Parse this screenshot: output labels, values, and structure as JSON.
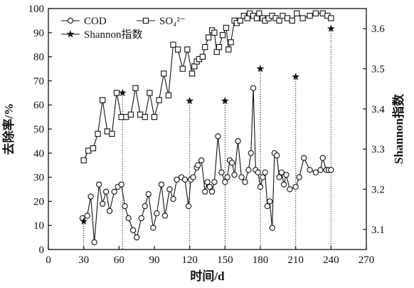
{
  "chart_data": {
    "type": "line",
    "xlabel": "时间/d",
    "ylabel": "去除率/%",
    "y2label": "Shannon指数",
    "xlim": [
      0,
      270
    ],
    "ylim": [
      0,
      100
    ],
    "y2lim": [
      3.05,
      3.65
    ],
    "xticks": [
      "0",
      "30",
      "60",
      "90",
      "120",
      "150",
      "180",
      "210",
      "240",
      "270"
    ],
    "yticks": [
      "0",
      "10",
      "20",
      "30",
      "40",
      "50",
      "60",
      "70",
      "80",
      "90",
      "100"
    ],
    "y2ticks": [
      "3.1",
      "3.2",
      "3.3",
      "3.4",
      "3.5",
      "3.6"
    ],
    "legend_position": "top-left",
    "series": [
      {
        "name": "COD",
        "axis": "left",
        "marker": "circle",
        "x": [
          29,
          33,
          36,
          39,
          43,
          46,
          49,
          52,
          56,
          59,
          62,
          65,
          68,
          72,
          75,
          79,
          82,
          85,
          89,
          92,
          96,
          99,
          103,
          106,
          109,
          113,
          116,
          119,
          121,
          123,
          126,
          127,
          130,
          133,
          135,
          137,
          139,
          141,
          144,
          147,
          150,
          152,
          154,
          156,
          158,
          161,
          164,
          167,
          170,
          172,
          174,
          176,
          178,
          180,
          182,
          184,
          186,
          188,
          190,
          192,
          194,
          196,
          198,
          200,
          202,
          205,
          210,
          213,
          217,
          222,
          227,
          231,
          233,
          236,
          238,
          240
        ],
        "y": [
          13,
          14,
          22,
          3,
          27,
          19,
          24,
          16,
          24,
          26,
          27,
          18,
          13,
          8,
          5,
          13,
          18,
          23,
          9,
          15,
          27,
          14,
          25,
          21,
          29,
          30,
          29,
          18,
          29,
          30,
          34,
          35,
          37,
          24,
          28,
          26,
          24,
          28,
          47,
          32,
          28,
          30,
          37,
          36,
          31,
          45,
          30,
          28,
          33,
          40,
          67,
          33,
          32,
          26,
          30,
          32,
          18,
          20,
          9,
          40,
          39,
          30,
          32,
          27,
          31,
          25,
          26,
          30,
          38,
          33,
          32,
          33,
          38,
          33,
          33,
          33
        ],
        "note": "values read off left axis (%)"
      },
      {
        "name": "SO₄²⁻",
        "axis": "left",
        "marker": "square",
        "x": [
          30,
          34,
          38,
          42,
          46,
          50,
          54,
          58,
          62,
          66,
          70,
          74,
          78,
          82,
          86,
          90,
          94,
          98,
          102,
          106,
          110,
          114,
          118,
          122,
          124,
          126,
          128,
          131,
          133,
          136,
          139,
          141,
          143,
          145,
          148,
          151,
          153,
          155,
          158,
          160,
          163,
          166,
          169,
          171,
          174,
          177,
          179,
          182,
          184,
          187,
          190,
          193,
          196,
          199,
          203,
          207,
          211,
          216,
          222,
          227,
          233,
          237,
          240
        ],
        "y": [
          37,
          41,
          42,
          48,
          62,
          49,
          48,
          65,
          55,
          55,
          56,
          67,
          56,
          55,
          65,
          55,
          62,
          73,
          64,
          85,
          83,
          75,
          83,
          73,
          76,
          78,
          79,
          80,
          84,
          88,
          91,
          90,
          82,
          84,
          89,
          92,
          83,
          86,
          95,
          94,
          95,
          97,
          96,
          98,
          97,
          96,
          98,
          96,
          95,
          96,
          97,
          96,
          95,
          97,
          96,
          95,
          98,
          96,
          97,
          98,
          98,
          97,
          96
        ],
        "note": "values read off left axis (%)"
      },
      {
        "name": "Shannon指数",
        "axis": "right",
        "marker": "star",
        "x": [
          30,
          63,
          120,
          150,
          180,
          210,
          240
        ],
        "y": [
          3.12,
          3.44,
          3.42,
          3.42,
          3.5,
          3.48,
          3.6
        ],
        "note": "values read off right axis; drawn with dotted drop lines to x-axis"
      }
    ]
  }
}
